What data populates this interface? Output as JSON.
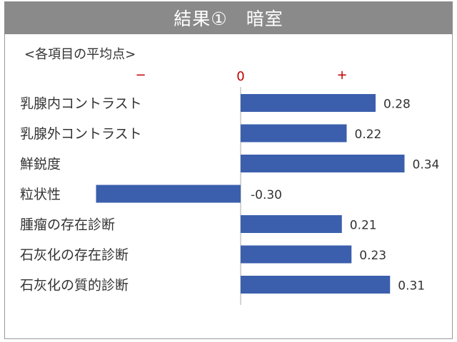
{
  "header": {
    "title": "結果①　暗室"
  },
  "subtitle": "<各項目の平均点>",
  "signs": {
    "minus": "−",
    "zero": "0",
    "plus": "+"
  },
  "colors": {
    "bar": "#3b5fad",
    "sign": "#c00000",
    "header_bg": "#8a8a8a"
  },
  "chart_data": {
    "type": "bar",
    "orientation": "horizontal",
    "categories": [
      "乳腺内コントラスト",
      "乳腺外コントラスト",
      "鮮鋭度",
      "粒状性",
      "腫瘤の存在診断",
      "石灰化の存在診断",
      "石灰化の質的診断"
    ],
    "values": [
      0.28,
      0.22,
      0.34,
      -0.3,
      0.21,
      0.23,
      0.31
    ],
    "labels": [
      "0.28",
      "0.22",
      "0.34",
      "-0.30",
      "0.21",
      "0.23",
      "0.31"
    ],
    "xlim": [
      -0.3,
      0.34
    ]
  }
}
